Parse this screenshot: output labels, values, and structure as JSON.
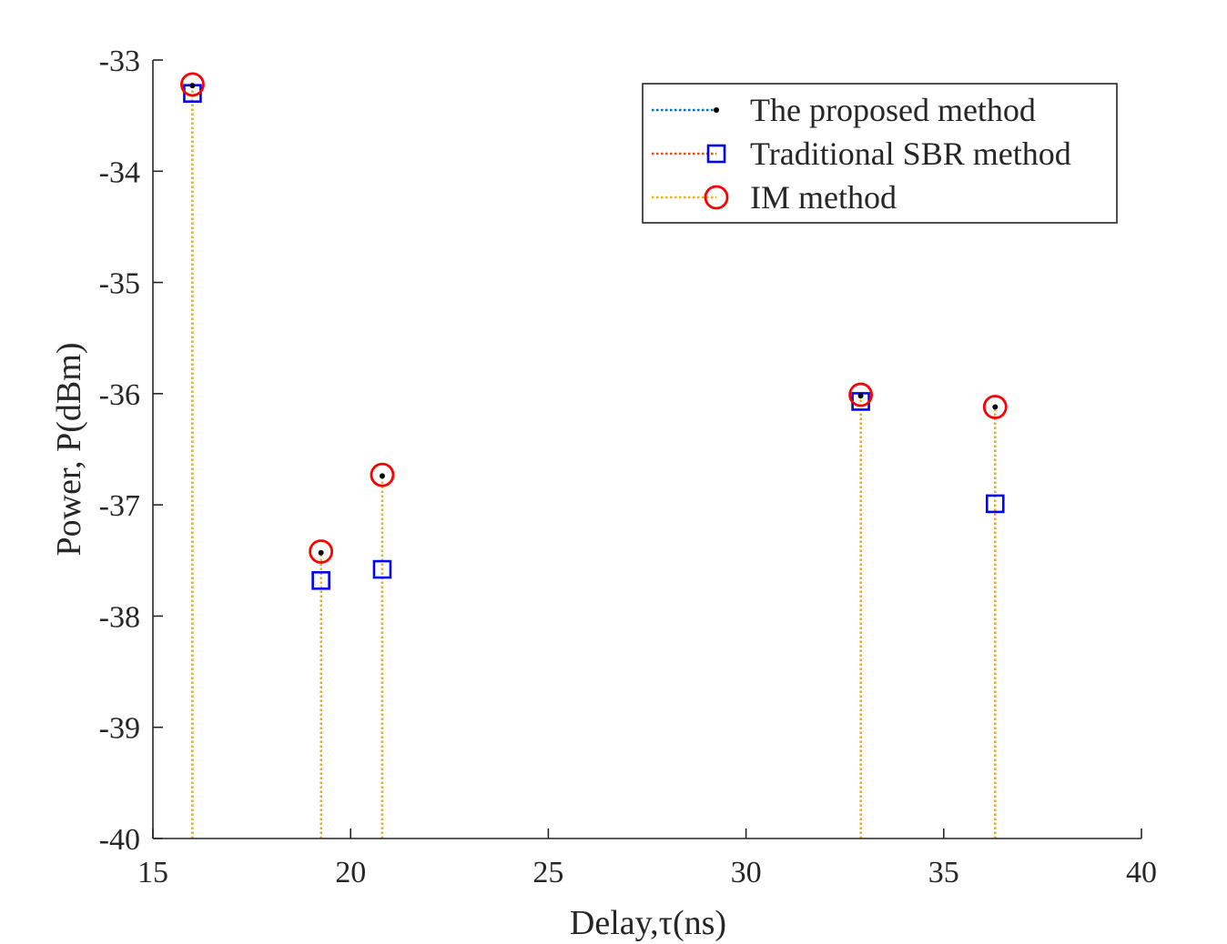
{
  "chart_data": {
    "type": "stem",
    "title": "",
    "xlabel": "Delay,τ(ns)",
    "ylabel": "Power, P(dBm)",
    "xlim": [
      15,
      40
    ],
    "ylim": [
      -40,
      -33
    ],
    "xticks": [
      "15",
      "20",
      "25",
      "30",
      "35",
      "40"
    ],
    "yticks": [
      "-40",
      "-39",
      "-38",
      "-37",
      "-36",
      "-35",
      "-34",
      "-33"
    ],
    "baseline": -40,
    "legend_position": "top-right",
    "grid": false,
    "series": [
      {
        "name": "The proposed method",
        "line_color": "#0072BD",
        "marker": "dot",
        "marker_color": "#000000",
        "x": [
          16.0,
          19.25,
          20.8,
          32.9,
          36.3
        ],
        "values": [
          -33.23,
          -37.43,
          -36.74,
          -36.02,
          -36.12
        ]
      },
      {
        "name": "Traditional SBR method",
        "line_color": "#D95319",
        "marker": "square",
        "marker_color": "#0000FF",
        "x": [
          16.0,
          19.25,
          20.8,
          32.9,
          36.3
        ],
        "values": [
          -33.3,
          -37.68,
          -37.58,
          -36.07,
          -36.99
        ]
      },
      {
        "name": "IM method",
        "line_color": "#EDB120",
        "marker": "circle",
        "marker_color": "#FF0000",
        "x": [
          16.0,
          19.25,
          20.8,
          32.9,
          36.3
        ],
        "values": [
          -33.22,
          -37.42,
          -36.73,
          -36.01,
          -36.12
        ]
      }
    ]
  }
}
